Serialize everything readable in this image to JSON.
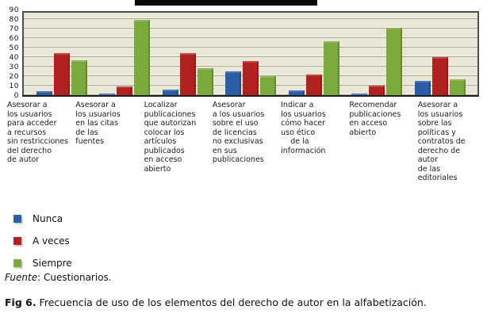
{
  "chart_data": {
    "type": "bar",
    "title": "",
    "categories": [
      "Asesorar a\nlos usuarios\npara acceder\na recursos\nsin restricciones\ndel derecho\nde autor",
      "Asesorar a\nlos usuarios\nen las citas\nde las\nfuentes",
      "Localizar\npublicaciones\nque autorizan\ncolocar los\nartículos\npublicados\nen acceso\nabierto",
      "Asesorar\na los usuarios\nsobre el uso\nde licencias\nno exclusivas\nen sus\npublicaciones",
      "Indicar a\nlos usuarios\ncómo hacer\nuso ético\n    de la\ninformación",
      "Recomendar\npublicaciones\nen acceso\nabierto",
      "Asesorar a\nlos usuarios\nsobre las\npolíticas y\ncontratos de\nderecho de\nautor\nde las\neditoriales"
    ],
    "series": [
      {
        "name": "Nunca",
        "color": "#2a5fa8",
        "values": [
          4,
          2,
          6,
          25,
          5,
          2,
          15
        ]
      },
      {
        "name": "A veces",
        "color": "#b2211f",
        "values": [
          44,
          9,
          44,
          36,
          22,
          10,
          40
        ]
      },
      {
        "name": "Siempre",
        "color": "#7ba93c",
        "values": [
          37,
          79,
          28,
          20,
          57,
          71,
          17
        ]
      }
    ],
    "ylabel": "",
    "xlabel": "",
    "ylim": [
      0,
      90
    ],
    "yticks": [
      90,
      80,
      70,
      60,
      50,
      40,
      30,
      20,
      10,
      0
    ],
    "grid": true,
    "legend_position": "bottom-left",
    "plot_background": "#eae7d6",
    "gridline_color": "#a9a696"
  },
  "source": {
    "prefix": "Fuente",
    "rest": ": Cuestionarios."
  },
  "caption": {
    "prefix": "Fig 6.",
    "rest": " Frecuencia de uso de los elementos del derecho de autor en la alfabetización."
  }
}
